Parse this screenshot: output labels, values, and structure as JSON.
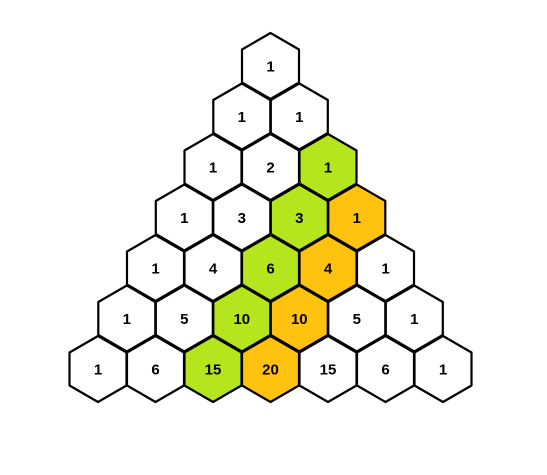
{
  "colors": {
    "default_fill": "#ffffff",
    "green_fill": "#b5e61d",
    "orange_fill": "#ffc20e",
    "stroke": "#000000"
  },
  "rows": [
    [
      {
        "v": "1",
        "c": "white"
      }
    ],
    [
      {
        "v": "1",
        "c": "white"
      },
      {
        "v": "1",
        "c": "white"
      }
    ],
    [
      {
        "v": "1",
        "c": "white"
      },
      {
        "v": "2",
        "c": "white"
      },
      {
        "v": "1",
        "c": "green"
      }
    ],
    [
      {
        "v": "1",
        "c": "white"
      },
      {
        "v": "3",
        "c": "white"
      },
      {
        "v": "3",
        "c": "green"
      },
      {
        "v": "1",
        "c": "orange"
      }
    ],
    [
      {
        "v": "1",
        "c": "white"
      },
      {
        "v": "4",
        "c": "white"
      },
      {
        "v": "6",
        "c": "green"
      },
      {
        "v": "4",
        "c": "orange"
      },
      {
        "v": "1",
        "c": "white"
      }
    ],
    [
      {
        "v": "1",
        "c": "white"
      },
      {
        "v": "5",
        "c": "white"
      },
      {
        "v": "10",
        "c": "green"
      },
      {
        "v": "10",
        "c": "orange"
      },
      {
        "v": "5",
        "c": "white"
      },
      {
        "v": "1",
        "c": "white"
      }
    ],
    [
      {
        "v": "1",
        "c": "white"
      },
      {
        "v": "6",
        "c": "white"
      },
      {
        "v": "15",
        "c": "green"
      },
      {
        "v": "20",
        "c": "orange"
      },
      {
        "v": "15",
        "c": "white"
      },
      {
        "v": "6",
        "c": "white"
      },
      {
        "v": "1",
        "c": "white"
      }
    ]
  ]
}
